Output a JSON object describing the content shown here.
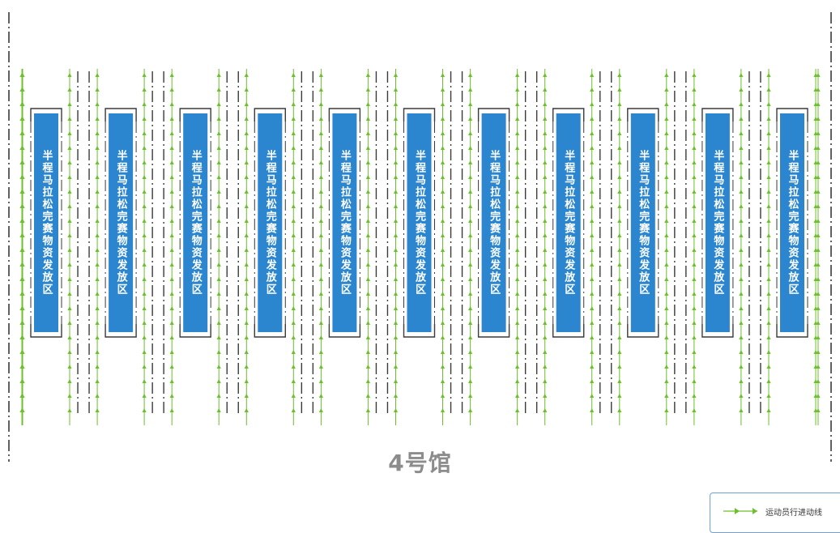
{
  "zone_labels": [
    "半程马拉松完赛物资发放区",
    "半程马拉松完赛物资发放区",
    "半程马拉松完赛物资发放区",
    "半程马拉松完赛物资发放区",
    "半程马拉松完赛物资发放区",
    "半程马拉松完赛物资发放区",
    "半程马拉松完赛物资发放区",
    "半程马拉松完赛物资发放区",
    "半程马拉松完赛物资发放区",
    "半程马拉松完赛物资发放区",
    "半程马拉松完赛物资发放区"
  ],
  "hall_title": "4号馆",
  "legend": {
    "label": "运动员行进动线"
  },
  "colors": {
    "zone_fill": "#2b86cf",
    "route_green": "#6cc02a",
    "barrier": "#3a3a3a",
    "title_gray": "#8c8c8c",
    "legend_border": "#6fa0d8"
  }
}
